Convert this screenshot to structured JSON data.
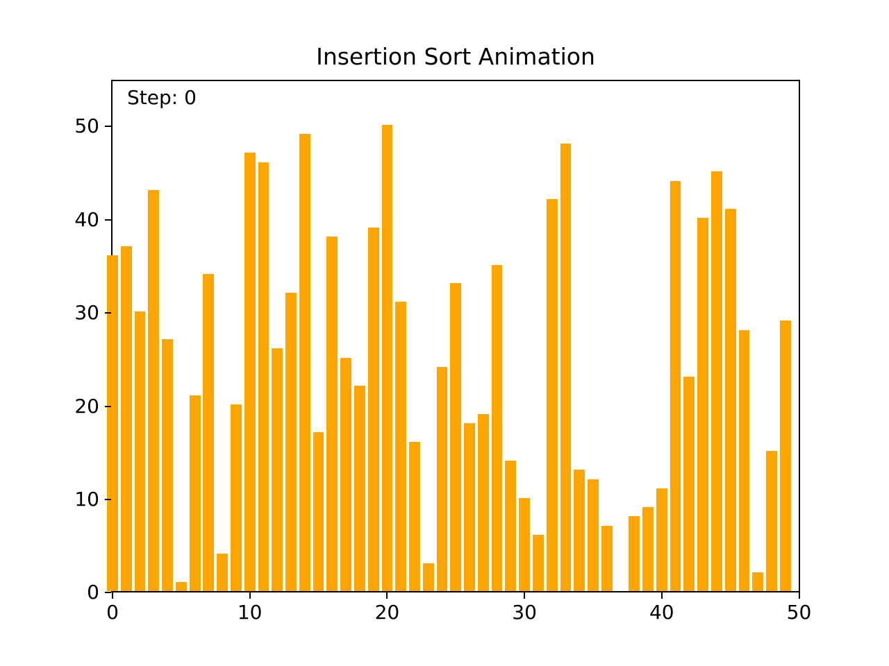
{
  "title": "Insertion Sort Animation",
  "annotation": "Step: 0",
  "colors": {
    "bar": "#FFA500",
    "axis": "#000000",
    "text": "#000000",
    "background": "#FFFFFF"
  },
  "chart_data": {
    "type": "bar",
    "title": "Insertion Sort Animation",
    "annotation": "Step: 0",
    "xlabel": "",
    "ylabel": "",
    "x": [
      0,
      1,
      2,
      3,
      4,
      5,
      6,
      7,
      8,
      9,
      10,
      11,
      12,
      13,
      14,
      15,
      16,
      17,
      18,
      19,
      20,
      21,
      22,
      23,
      24,
      25,
      26,
      27,
      28,
      29,
      30,
      31,
      32,
      33,
      34,
      35,
      36,
      37,
      38,
      39,
      40,
      41,
      42,
      43,
      44,
      45,
      46,
      47,
      48,
      49
    ],
    "values": [
      36,
      37,
      30,
      43,
      27,
      1,
      21,
      34,
      4,
      20,
      47,
      46,
      26,
      32,
      49,
      17,
      38,
      25,
      22,
      39,
      50,
      31,
      16,
      3,
      24,
      33,
      18,
      19,
      35,
      14,
      10,
      6,
      42,
      48,
      13,
      12,
      7,
      0,
      8,
      9,
      11,
      44,
      23,
      40,
      45,
      41,
      28,
      2,
      15,
      29
    ],
    "xticks": [
      0,
      10,
      20,
      30,
      40,
      50
    ],
    "yticks": [
      0,
      10,
      20,
      30,
      40,
      50
    ],
    "xlim": [
      -0.1,
      50.1
    ],
    "ylim": [
      0,
      55
    ],
    "grid": false,
    "legend_position": "none",
    "bar_color": "#FFA500"
  }
}
